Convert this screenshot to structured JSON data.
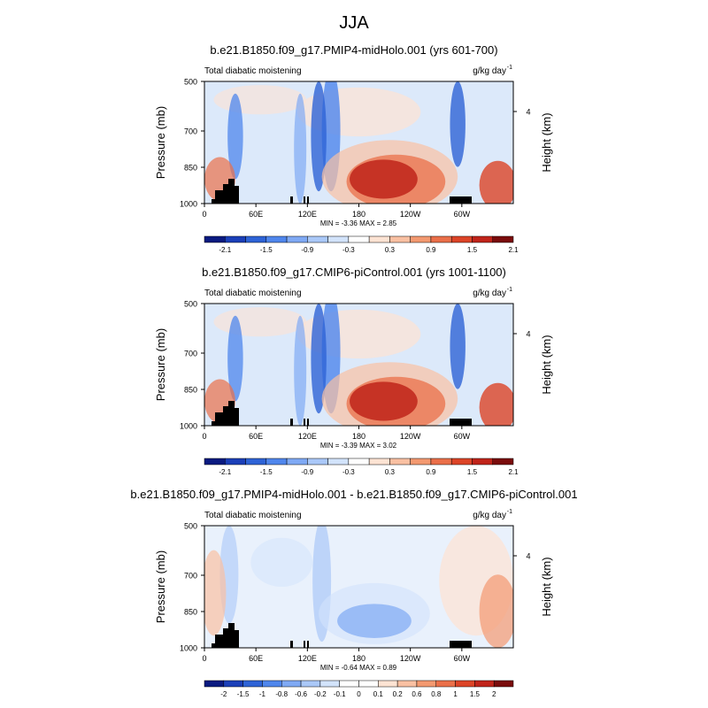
{
  "season_title": "JJA",
  "chart_data": [
    {
      "type": "heatmap",
      "kind": "pressure-longitude filled contour",
      "title": "b.e21.B1850.f09_g17.PMIP4-midHolo.001 (yrs 601-700)",
      "left_label": "Total diabatic moistening",
      "units_label": "g/kg day",
      "units_exponent": "-1",
      "ylabel": "Pressure (mb)",
      "ylabel_right": "Height (km)",
      "y_ticks": [
        "500",
        "700",
        "850",
        "1000"
      ],
      "y_right_ticks": [
        "4"
      ],
      "x_ticks": [
        "0",
        "60E",
        "120E",
        "180",
        "120W",
        "60W"
      ],
      "min_max_text": "MIN =  -3.36  MAX =   2.85",
      "colorbar_labels": [
        "-2.1",
        "-1.5",
        "-0.9",
        "-0.3",
        "0.3",
        "0.9",
        "1.5",
        "2.1"
      ],
      "colorbar_colors": [
        "#0a1a80",
        "#1b3fb8",
        "#2e63d6",
        "#4f86ec",
        "#7fa9f4",
        "#aac8f8",
        "#d2e3fb",
        "#ffffff",
        "#fde3d3",
        "#f9c0a2",
        "#f39970",
        "#ea6f49",
        "#dc4427",
        "#c0241a",
        "#7a0c0c"
      ]
    },
    {
      "type": "heatmap",
      "kind": "pressure-longitude filled contour",
      "title": "b.e21.B1850.f09_g17.CMIP6-piControl.001 (yrs 1001-1100)",
      "left_label": "Total diabatic moistening",
      "units_label": "g/kg day",
      "units_exponent": "-1",
      "ylabel": "Pressure (mb)",
      "ylabel_right": "Height (km)",
      "y_ticks": [
        "500",
        "700",
        "850",
        "1000"
      ],
      "y_right_ticks": [
        "4"
      ],
      "x_ticks": [
        "0",
        "60E",
        "120E",
        "180",
        "120W",
        "60W"
      ],
      "min_max_text": "MIN =  -3.39  MAX =   3.02",
      "colorbar_labels": [
        "-2.1",
        "-1.5",
        "-0.9",
        "-0.3",
        "0.3",
        "0.9",
        "1.5",
        "2.1"
      ],
      "colorbar_colors": [
        "#0a1a80",
        "#1b3fb8",
        "#2e63d6",
        "#4f86ec",
        "#7fa9f4",
        "#aac8f8",
        "#d2e3fb",
        "#ffffff",
        "#fde3d3",
        "#f9c0a2",
        "#f39970",
        "#ea6f49",
        "#dc4427",
        "#c0241a",
        "#7a0c0c"
      ]
    },
    {
      "type": "heatmap",
      "kind": "pressure-longitude filled contour (difference)",
      "title": "b.e21.B1850.f09_g17.PMIP4-midHolo.001 - b.e21.B1850.f09_g17.CMIP6-piControl.001",
      "left_label": "Total diabatic moistening",
      "units_label": "g/kg day",
      "units_exponent": "-1",
      "ylabel": "Pressure (mb)",
      "ylabel_right": "Height (km)",
      "y_ticks": [
        "500",
        "700",
        "850",
        "1000"
      ],
      "y_right_ticks": [
        "4"
      ],
      "x_ticks": [
        "0",
        "60E",
        "120E",
        "180",
        "120W",
        "60W"
      ],
      "min_max_text": "MIN =  -0.64  MAX =   0.89",
      "colorbar_labels": [
        "-2",
        "-1.5",
        "-1",
        "-0.8",
        "-0.6",
        "-0.2",
        "-0.1",
        "0",
        "0.1",
        "0.2",
        "0.6",
        "0.8",
        "1",
        "1.5",
        "2"
      ],
      "colorbar_colors": [
        "#0a1a80",
        "#1b3fb8",
        "#2e63d6",
        "#4f86ec",
        "#7fa9f4",
        "#aac8f8",
        "#d2e3fb",
        "#ffffff",
        "#ffffff",
        "#fde3d3",
        "#f9c0a2",
        "#f39970",
        "#ea6f49",
        "#dc4427",
        "#c0241a",
        "#7a0c0c"
      ]
    }
  ]
}
